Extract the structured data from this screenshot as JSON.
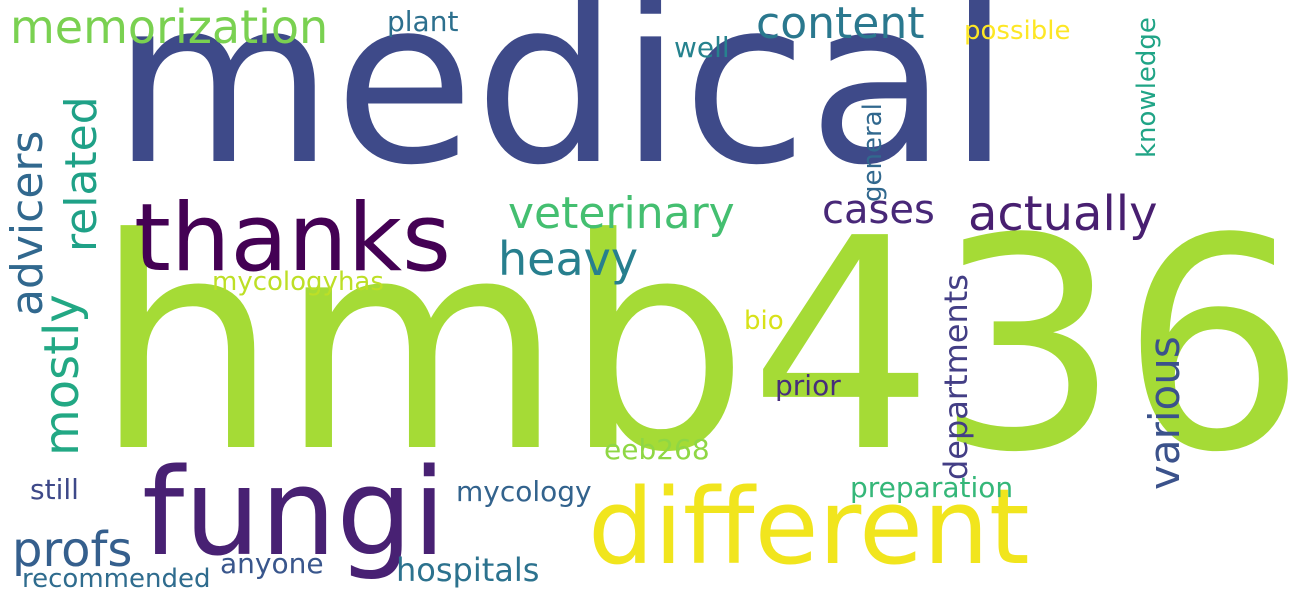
{
  "words": [
    {
      "text": "medical",
      "color": "#3e4a89",
      "orientation": "horizontal"
    },
    {
      "text": "hmb436",
      "color": "#a5db36",
      "orientation": "horizontal"
    },
    {
      "text": "fungi",
      "color": "#482173",
      "orientation": "horizontal"
    },
    {
      "text": "different",
      "color": "#f1e51d",
      "orientation": "horizontal"
    },
    {
      "text": "thanks",
      "color": "#440154",
      "orientation": "horizontal"
    },
    {
      "text": "memorization",
      "color": "#7ad151",
      "orientation": "horizontal"
    },
    {
      "text": "content",
      "color": "#2a788e",
      "orientation": "horizontal"
    },
    {
      "text": "veterinary",
      "color": "#44bf70",
      "orientation": "horizontal"
    },
    {
      "text": "heavy",
      "color": "#277f8e",
      "orientation": "horizontal"
    },
    {
      "text": "cases",
      "color": "#482878",
      "orientation": "horizontal"
    },
    {
      "text": "actually",
      "color": "#481f70",
      "orientation": "horizontal"
    },
    {
      "text": "related",
      "color": "#1fa187",
      "orientation": "vertical"
    },
    {
      "text": "advicers",
      "color": "#31688e",
      "orientation": "vertical"
    },
    {
      "text": "mostly",
      "color": "#22a884",
      "orientation": "vertical"
    },
    {
      "text": "various",
      "color": "#3b528b",
      "orientation": "vertical"
    },
    {
      "text": "departments",
      "color": "#433e85",
      "orientation": "vertical"
    },
    {
      "text": "knowledge",
      "color": "#20a486",
      "orientation": "vertical"
    },
    {
      "text": "general",
      "color": "#31688e",
      "orientation": "vertical"
    },
    {
      "text": "profs",
      "color": "#355f8d",
      "orientation": "horizontal"
    },
    {
      "text": "hospitals",
      "color": "#2c728e",
      "orientation": "horizontal"
    },
    {
      "text": "preparation",
      "color": "#35b779",
      "orientation": "horizontal"
    },
    {
      "text": "mycology",
      "color": "#33638d",
      "orientation": "horizontal"
    },
    {
      "text": "mycologyhas",
      "color": "#bddf26",
      "orientation": "horizontal"
    },
    {
      "text": "plant",
      "color": "#2d708e",
      "orientation": "horizontal"
    },
    {
      "text": "well",
      "color": "#26828e",
      "orientation": "horizontal"
    },
    {
      "text": "possible",
      "color": "#fde725",
      "orientation": "horizontal"
    },
    {
      "text": "bio",
      "color": "#d8e219",
      "orientation": "horizontal"
    },
    {
      "text": "prior",
      "color": "#472d7b",
      "orientation": "horizontal"
    },
    {
      "text": "eeb268",
      "color": "#8fd744",
      "orientation": "horizontal"
    },
    {
      "text": "still",
      "color": "#3e4989",
      "orientation": "horizontal"
    },
    {
      "text": "anyone",
      "color": "#39568c",
      "orientation": "horizontal"
    },
    {
      "text": "recommended",
      "color": "#2f6c8e",
      "orientation": "horizontal"
    }
  ]
}
